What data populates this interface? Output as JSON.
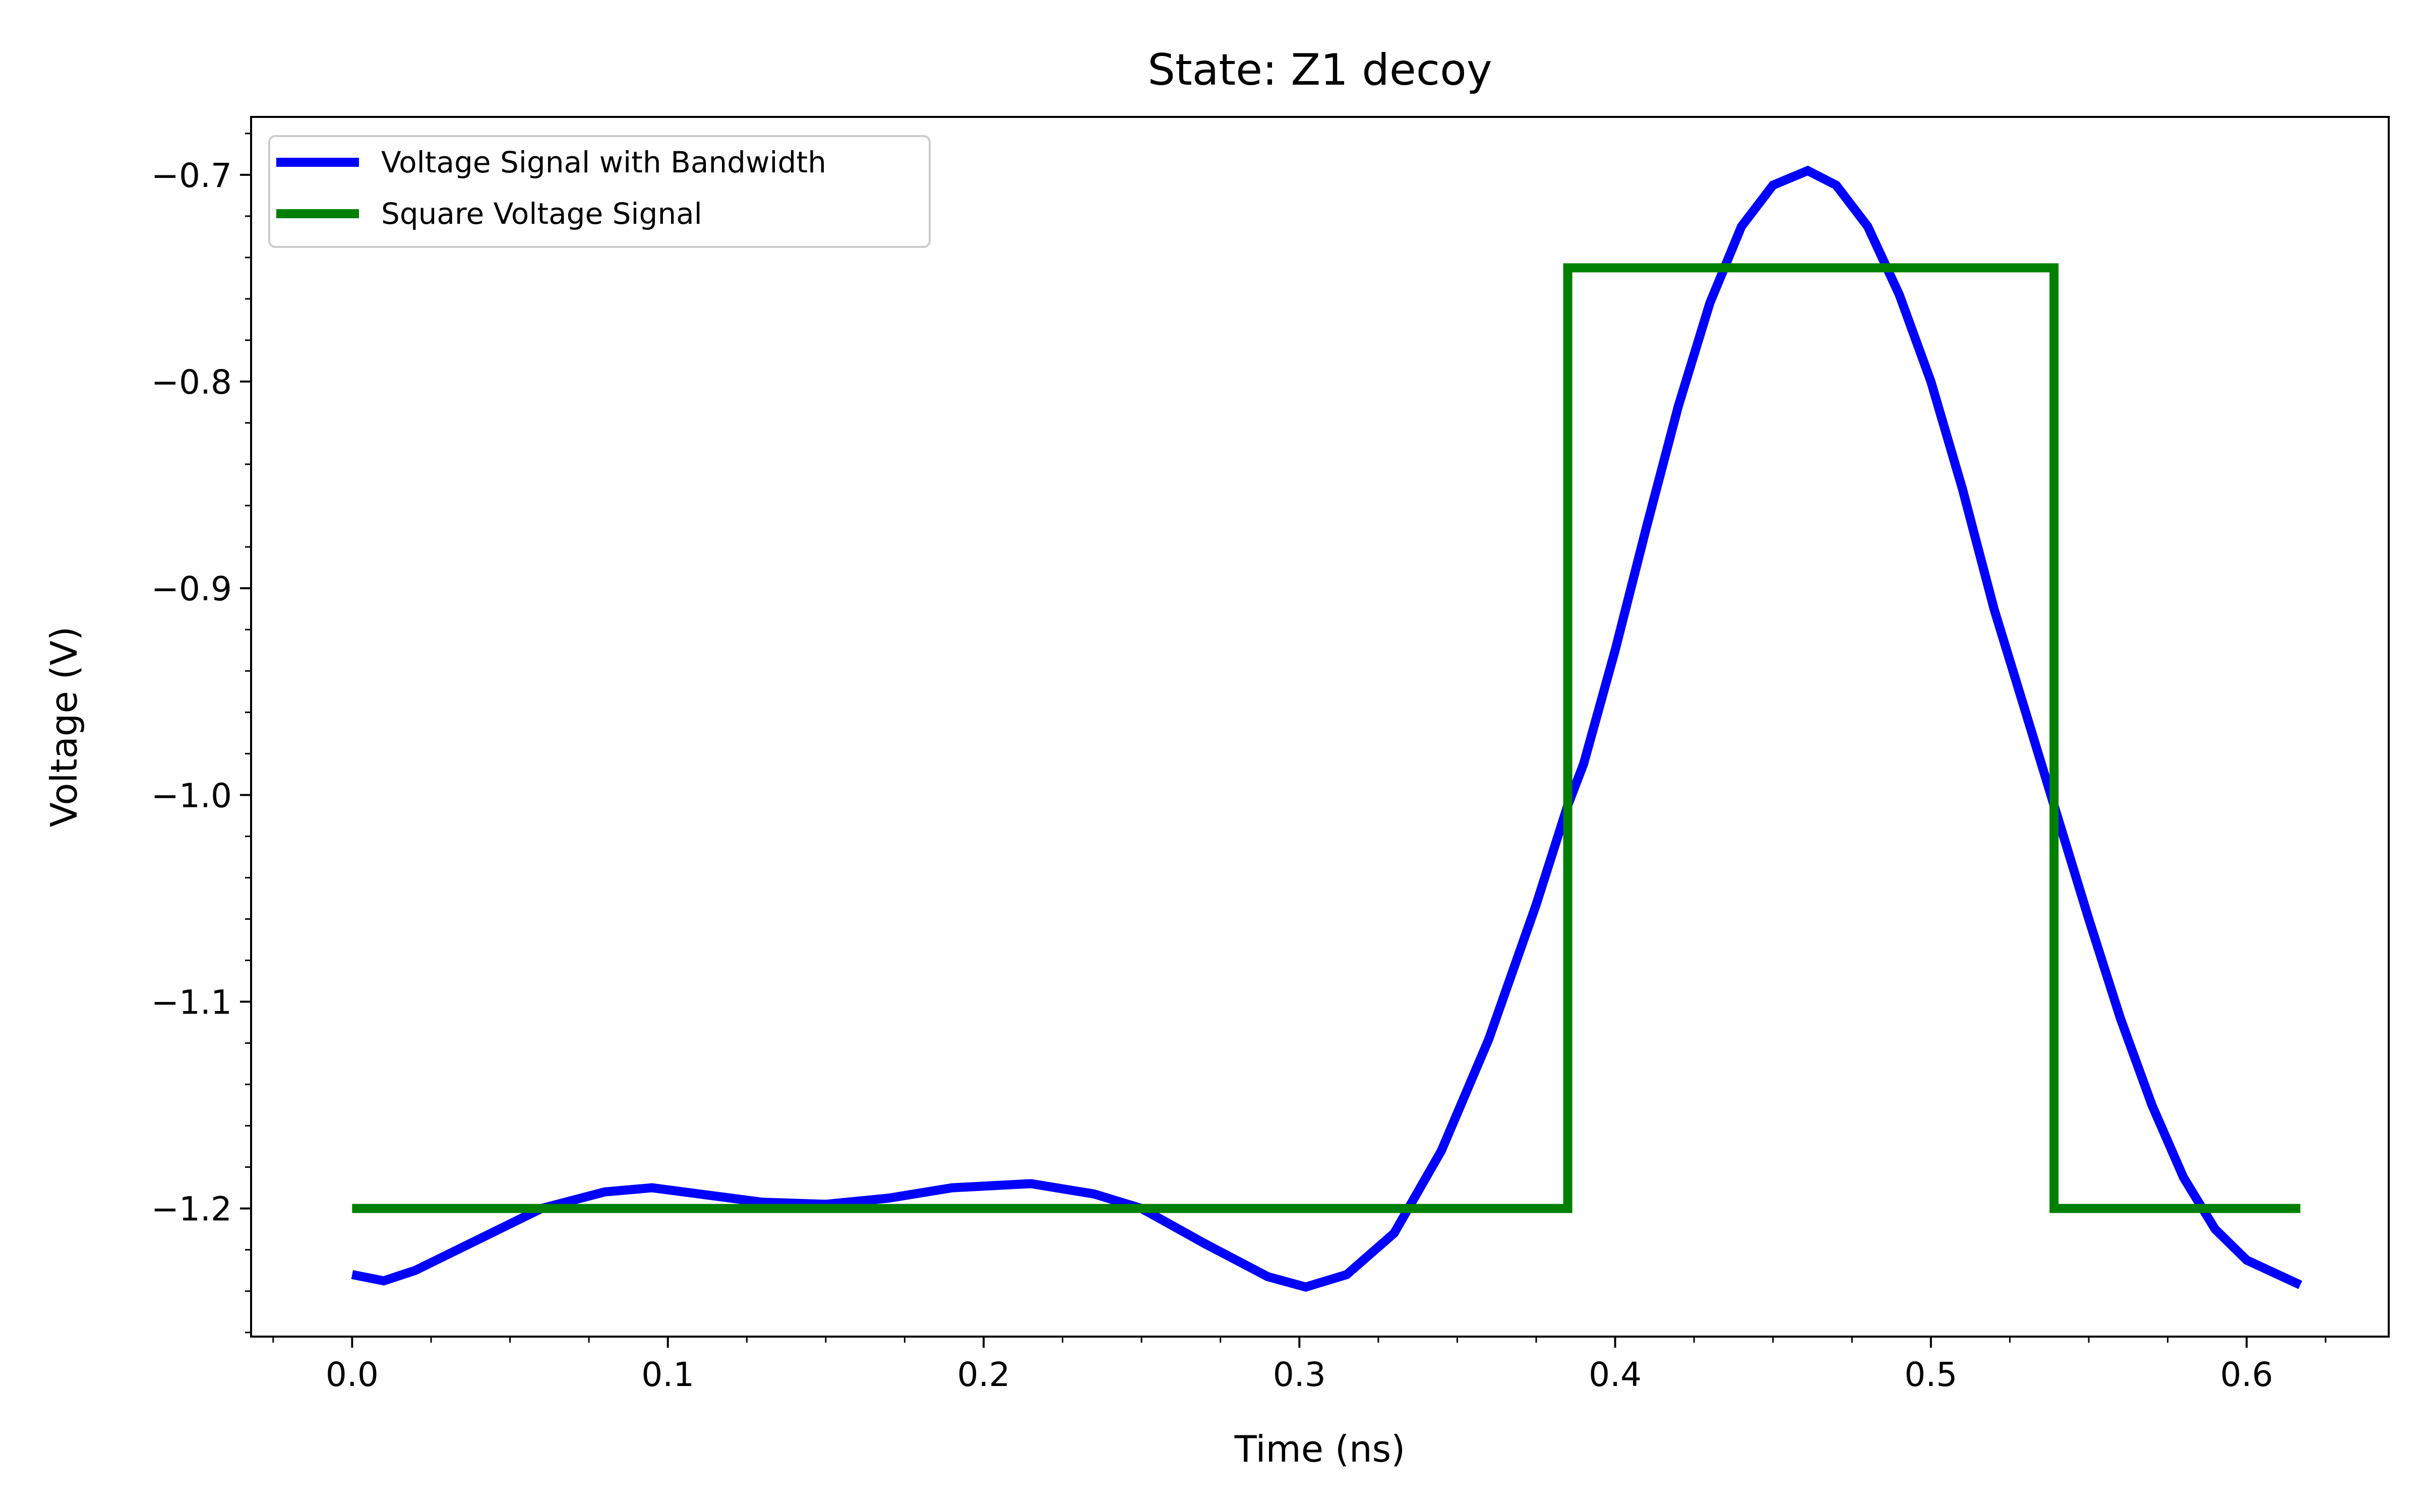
{
  "chart_data": {
    "type": "line",
    "title": "State: Z1 decoy",
    "xlabel": "Time (ns)",
    "ylabel": "Voltage (V)",
    "xlim": [
      -0.032,
      0.645
    ],
    "ylim": [
      -1.262,
      -0.672
    ],
    "x_ticks": [
      0.0,
      0.1,
      0.2,
      0.3,
      0.4,
      0.5,
      0.6
    ],
    "x_tick_labels": [
      "0.0",
      "0.1",
      "0.2",
      "0.3",
      "0.4",
      "0.5",
      "0.6"
    ],
    "y_ticks": [
      -0.7,
      -0.8,
      -0.9,
      -1.0,
      -1.1,
      -1.2
    ],
    "y_tick_labels": [
      "−0.7",
      "−0.8",
      "−0.9",
      "−1.0",
      "−1.1",
      "−1.2"
    ],
    "minor_ticks": true,
    "grid": false,
    "legend_position": "top-left",
    "series": [
      {
        "name": "Voltage Signal with Bandwidth",
        "color": "#0000ff",
        "x": [
          0.0,
          0.01,
          0.02,
          0.04,
          0.06,
          0.08,
          0.095,
          0.11,
          0.13,
          0.15,
          0.17,
          0.19,
          0.215,
          0.235,
          0.25,
          0.27,
          0.29,
          0.302,
          0.315,
          0.33,
          0.345,
          0.36,
          0.375,
          0.385,
          0.39,
          0.4,
          0.41,
          0.42,
          0.43,
          0.44,
          0.45,
          0.461,
          0.47,
          0.48,
          0.49,
          0.5,
          0.51,
          0.52,
          0.53,
          0.54,
          0.55,
          0.56,
          0.57,
          0.58,
          0.59,
          0.6,
          0.617
        ],
        "y": [
          -1.232,
          -1.235,
          -1.23,
          -1.215,
          -1.2,
          -1.192,
          -1.19,
          -1.193,
          -1.197,
          -1.198,
          -1.195,
          -1.19,
          -1.188,
          -1.193,
          -1.2,
          -1.217,
          -1.233,
          -1.238,
          -1.232,
          -1.212,
          -1.172,
          -1.118,
          -1.053,
          -1.005,
          -0.985,
          -0.93,
          -0.87,
          -0.812,
          -0.762,
          -0.725,
          -0.705,
          -0.698,
          -0.705,
          -0.725,
          -0.758,
          -0.8,
          -0.852,
          -0.91,
          -0.96,
          -1.01,
          -1.06,
          -1.108,
          -1.15,
          -1.185,
          -1.21,
          -1.225,
          -1.237
        ]
      },
      {
        "name": "Square Voltage Signal",
        "color": "#008000",
        "x": [
          0.0,
          0.385,
          0.385,
          0.539,
          0.539,
          0.617
        ],
        "y": [
          -1.2,
          -1.2,
          -0.745,
          -0.745,
          -1.2,
          -1.2
        ]
      }
    ]
  }
}
